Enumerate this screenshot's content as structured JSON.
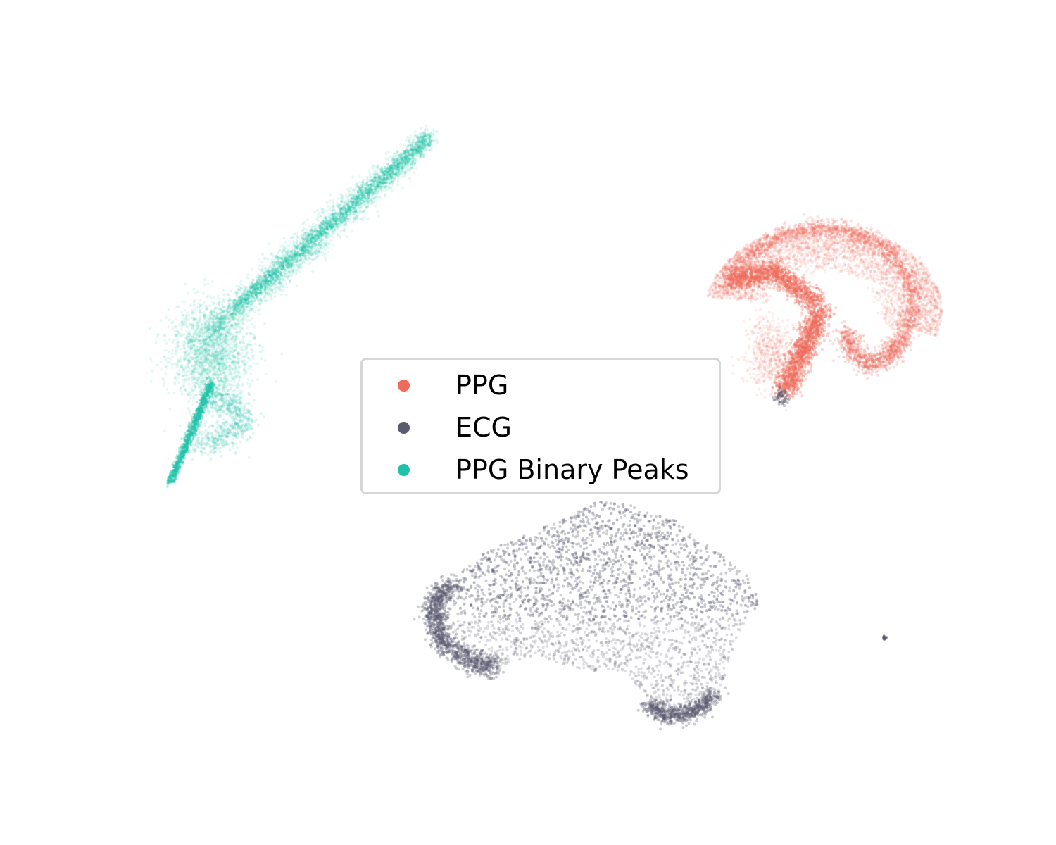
{
  "chart_data": {
    "type": "scatter",
    "title": "",
    "xlabel": "",
    "ylabel": "",
    "axes_visible": false,
    "grid": false,
    "legend_position": "center",
    "series": [
      {
        "name": "PPG",
        "color": "#ee6a5a",
        "clusters": [
          {
            "shape": "fan",
            "center": [
              1160,
              440
            ],
            "approx_points": 9000
          }
        ]
      },
      {
        "name": "ECG",
        "color": "#5a5a70",
        "clusters": [
          {
            "shape": "blob",
            "center": [
              850,
              860
            ],
            "approx_points": 12000
          },
          {
            "shape": "dot",
            "center": [
              1256,
              906
            ],
            "approx_points": 20
          },
          {
            "shape": "dot",
            "center": [
              1110,
              562
            ],
            "approx_points": 60
          }
        ]
      },
      {
        "name": "PPG Binary Peaks",
        "color": "#1fc2a8",
        "clusters": [
          {
            "shape": "streak",
            "center": [
              420,
              430
            ],
            "approx_points": 9000
          }
        ]
      }
    ]
  }
}
